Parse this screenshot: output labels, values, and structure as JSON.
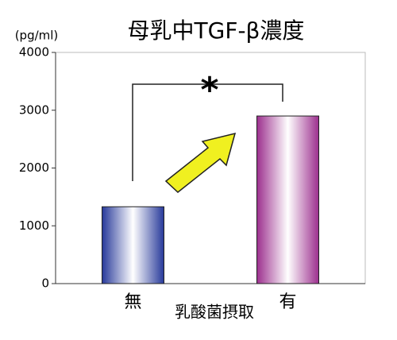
{
  "chart_data": {
    "type": "bar",
    "title": "母乳中TGF-β濃度",
    "y_unit": "(pg/ml)",
    "x_label": "乳酸菌摂取",
    "categories": [
      "無",
      "有"
    ],
    "values": [
      1330,
      2900
    ],
    "colors": [
      "#27399a",
      "#9c2f8e"
    ],
    "ylim": [
      0,
      4000
    ],
    "yticks": [
      0,
      1000,
      2000,
      3000,
      4000
    ],
    "grid": false,
    "annotation": "*"
  }
}
